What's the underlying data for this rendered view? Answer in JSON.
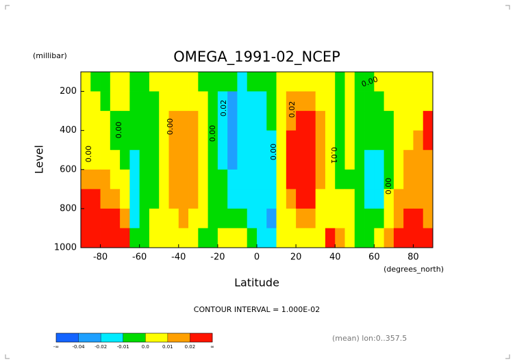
{
  "chart_data": {
    "type": "contour",
    "title": "OMEGA_1991-02_NCEP",
    "y_unit": "(millibar)",
    "ylabel": "Level",
    "xlabel": "Latitude",
    "x_unit": "(degrees_north)",
    "contour_interval": "CONTOUR INTERVAL = 1.000E-02",
    "note": "(mean) lon:0..357.5",
    "xlim": [
      -90,
      90
    ],
    "ylim": [
      1000,
      100
    ],
    "xticks": [
      -80,
      -60,
      -40,
      -20,
      0,
      20,
      40,
      60,
      80
    ],
    "yticks": [
      200,
      400,
      600,
      800,
      1000
    ],
    "x": [
      -87.5,
      -82.5,
      -77.5,
      -72.5,
      -67.5,
      -62.5,
      -57.5,
      -52.5,
      -47.5,
      -42.5,
      -37.5,
      -32.5,
      -27.5,
      -22.5,
      -17.5,
      -12.5,
      -7.5,
      -2.5,
      2.5,
      7.5,
      12.5,
      17.5,
      22.5,
      27.5,
      32.5,
      37.5,
      42.5,
      47.5,
      52.5,
      57.5,
      62.5,
      67.5,
      72.5,
      77.5,
      82.5,
      87.5
    ],
    "y": [
      150,
      250,
      350,
      450,
      550,
      650,
      750,
      850,
      950
    ],
    "z": [
      [
        0.005,
        -0.005,
        -0.005,
        0.005,
        0.005,
        -0.005,
        -0.005,
        0.005,
        0.005,
        0.005,
        0.005,
        0.005,
        -0.005,
        -0.005,
        -0.005,
        -0.005,
        -0.015,
        -0.005,
        -0.005,
        -0.005,
        0.005,
        0.005,
        0.005,
        0.005,
        0.005,
        0.005,
        -0.005,
        0.005,
        -0.005,
        -0.005,
        0.005,
        0.005,
        0.005,
        0.005,
        0.005,
        0.005
      ],
      [
        0.005,
        0.005,
        -0.005,
        0.005,
        0.005,
        -0.005,
        -0.005,
        -0.005,
        0.005,
        0.005,
        0.005,
        0.005,
        0.005,
        -0.005,
        -0.015,
        -0.03,
        -0.015,
        -0.015,
        -0.015,
        -0.005,
        0.005,
        0.015,
        0.015,
        0.015,
        0.005,
        0.005,
        -0.005,
        0.005,
        -0.005,
        -0.005,
        -0.005,
        0.005,
        0.005,
        0.005,
        0.005,
        0.005
      ],
      [
        0.005,
        0.005,
        0.005,
        -0.005,
        -0.005,
        -0.005,
        -0.005,
        -0.005,
        0.005,
        0.015,
        0.015,
        0.015,
        0.005,
        -0.005,
        -0.015,
        -0.03,
        -0.015,
        -0.015,
        -0.015,
        -0.005,
        0.005,
        0.015,
        0.025,
        0.025,
        0.015,
        0.005,
        -0.005,
        0.005,
        -0.005,
        -0.005,
        -0.005,
        -0.005,
        0.005,
        0.005,
        0.005,
        0.025
      ],
      [
        0.005,
        0.005,
        0.005,
        -0.005,
        -0.005,
        -0.005,
        -0.005,
        -0.005,
        0.005,
        0.015,
        0.015,
        0.015,
        0.005,
        -0.005,
        -0.015,
        -0.03,
        -0.015,
        -0.015,
        -0.015,
        -0.015,
        0.005,
        0.025,
        0.025,
        0.025,
        0.015,
        0.005,
        -0.005,
        0.005,
        -0.005,
        -0.005,
        -0.005,
        -0.005,
        0.005,
        0.005,
        0.015,
        0.025
      ],
      [
        0.005,
        0.005,
        0.005,
        0.005,
        -0.005,
        -0.015,
        -0.005,
        -0.005,
        0.005,
        0.015,
        0.015,
        0.015,
        0.005,
        -0.005,
        -0.015,
        -0.03,
        -0.015,
        -0.015,
        -0.015,
        -0.015,
        0.005,
        0.025,
        0.025,
        0.025,
        0.015,
        0.005,
        -0.005,
        0.005,
        -0.005,
        -0.015,
        -0.015,
        -0.005,
        0.005,
        0.015,
        0.015,
        0.015
      ],
      [
        0.015,
        0.015,
        0.015,
        0.005,
        0.005,
        -0.015,
        -0.005,
        -0.005,
        0.005,
        0.015,
        0.015,
        0.015,
        0.005,
        -0.005,
        -0.005,
        -0.015,
        -0.015,
        -0.015,
        -0.015,
        -0.015,
        0.005,
        0.025,
        0.025,
        0.025,
        0.015,
        0.005,
        -0.005,
        -0.005,
        -0.005,
        -0.015,
        -0.015,
        -0.005,
        0.005,
        0.015,
        0.015,
        0.015
      ],
      [
        0.025,
        0.025,
        0.015,
        0.015,
        0.005,
        -0.015,
        -0.005,
        -0.005,
        0.005,
        0.015,
        0.015,
        0.015,
        0.005,
        -0.005,
        -0.005,
        -0.015,
        -0.015,
        -0.015,
        -0.015,
        -0.015,
        0.005,
        0.015,
        0.025,
        0.025,
        0.005,
        0.005,
        0.005,
        0.005,
        -0.005,
        -0.015,
        -0.015,
        0.005,
        0.015,
        0.015,
        0.015,
        0.015
      ],
      [
        0.025,
        0.025,
        0.025,
        0.025,
        0.015,
        -0.015,
        -0.005,
        0.005,
        0.005,
        0.005,
        0.015,
        0.005,
        0.005,
        -0.005,
        -0.005,
        -0.005,
        -0.005,
        -0.015,
        -0.015,
        -0.03,
        0.005,
        0.005,
        0.015,
        0.015,
        0.005,
        0.005,
        0.005,
        0.005,
        -0.005,
        -0.005,
        -0.005,
        0.005,
        0.015,
        0.025,
        0.025,
        0.015
      ],
      [
        0.025,
        0.025,
        0.025,
        0.025,
        0.025,
        -0.005,
        -0.005,
        0.005,
        0.005,
        0.005,
        0.005,
        0.005,
        -0.005,
        -0.005,
        0.005,
        0.005,
        0.005,
        -0.005,
        -0.015,
        -0.015,
        0.005,
        0.005,
        0.005,
        0.005,
        0.005,
        0.025,
        0.015,
        0.005,
        -0.005,
        -0.005,
        0.005,
        0.015,
        0.025,
        0.025,
        0.025,
        0.025
      ]
    ],
    "contour_labels": [
      "0.00",
      "0.00",
      "0.00",
      "0.02",
      "0.00",
      "0.00",
      "0.02",
      "0.01",
      "0.00",
      "0.00"
    ],
    "colorbar": {
      "low_label": "-∞",
      "high_label": "∞",
      "levels": [
        -0.04,
        -0.02,
        -0.01,
        {
          "value": 0,
          "label": "0.0"
        },
        0.01,
        0.02
      ],
      "colors": [
        "#1464ff",
        "#1ea0ff",
        "#00ebff",
        "#00dc00",
        "#ffff00",
        "#ffa000",
        "#ff1400"
      ]
    }
  }
}
